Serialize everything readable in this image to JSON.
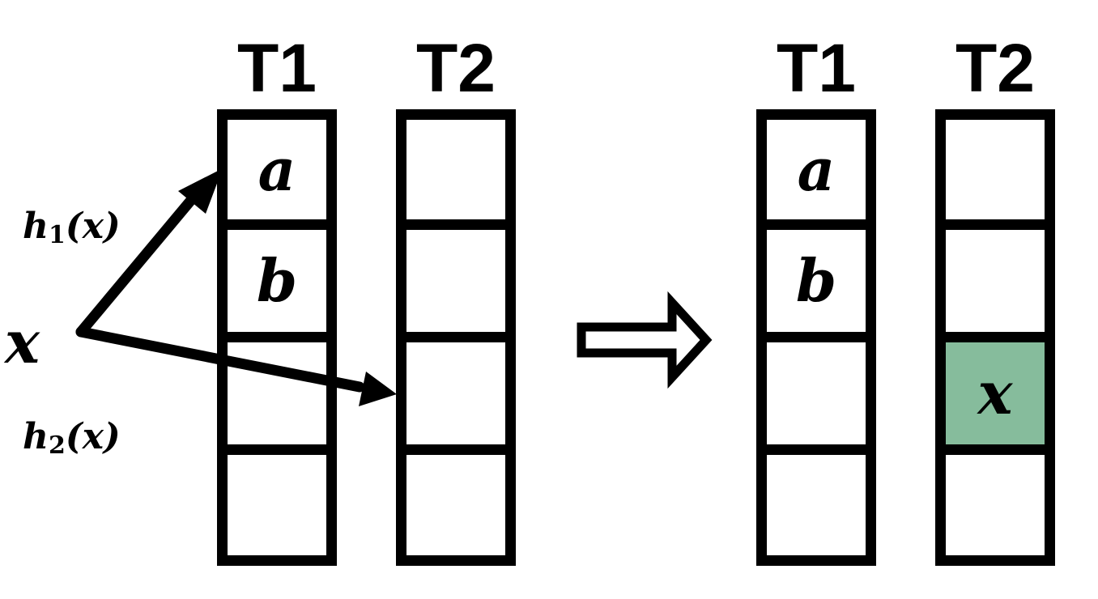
{
  "left": {
    "tables": [
      {
        "label": "T1",
        "cells": [
          "a",
          "b",
          "",
          ""
        ]
      },
      {
        "label": "T2",
        "cells": [
          "",
          "",
          "",
          ""
        ]
      }
    ],
    "input": "x",
    "h1": {
      "name": "h",
      "sub": "1",
      "arg": "(x)"
    },
    "h2": {
      "name": "h",
      "sub": "2",
      "arg": "(x)"
    }
  },
  "right": {
    "tables": [
      {
        "label": "T1",
        "cells": [
          "a",
          "b",
          "",
          ""
        ]
      },
      {
        "label": "T2",
        "cells": [
          "",
          "",
          "x",
          ""
        ]
      }
    ]
  },
  "colors": {
    "inserted_cell": "#86bc9c",
    "stroke": "#000000"
  }
}
